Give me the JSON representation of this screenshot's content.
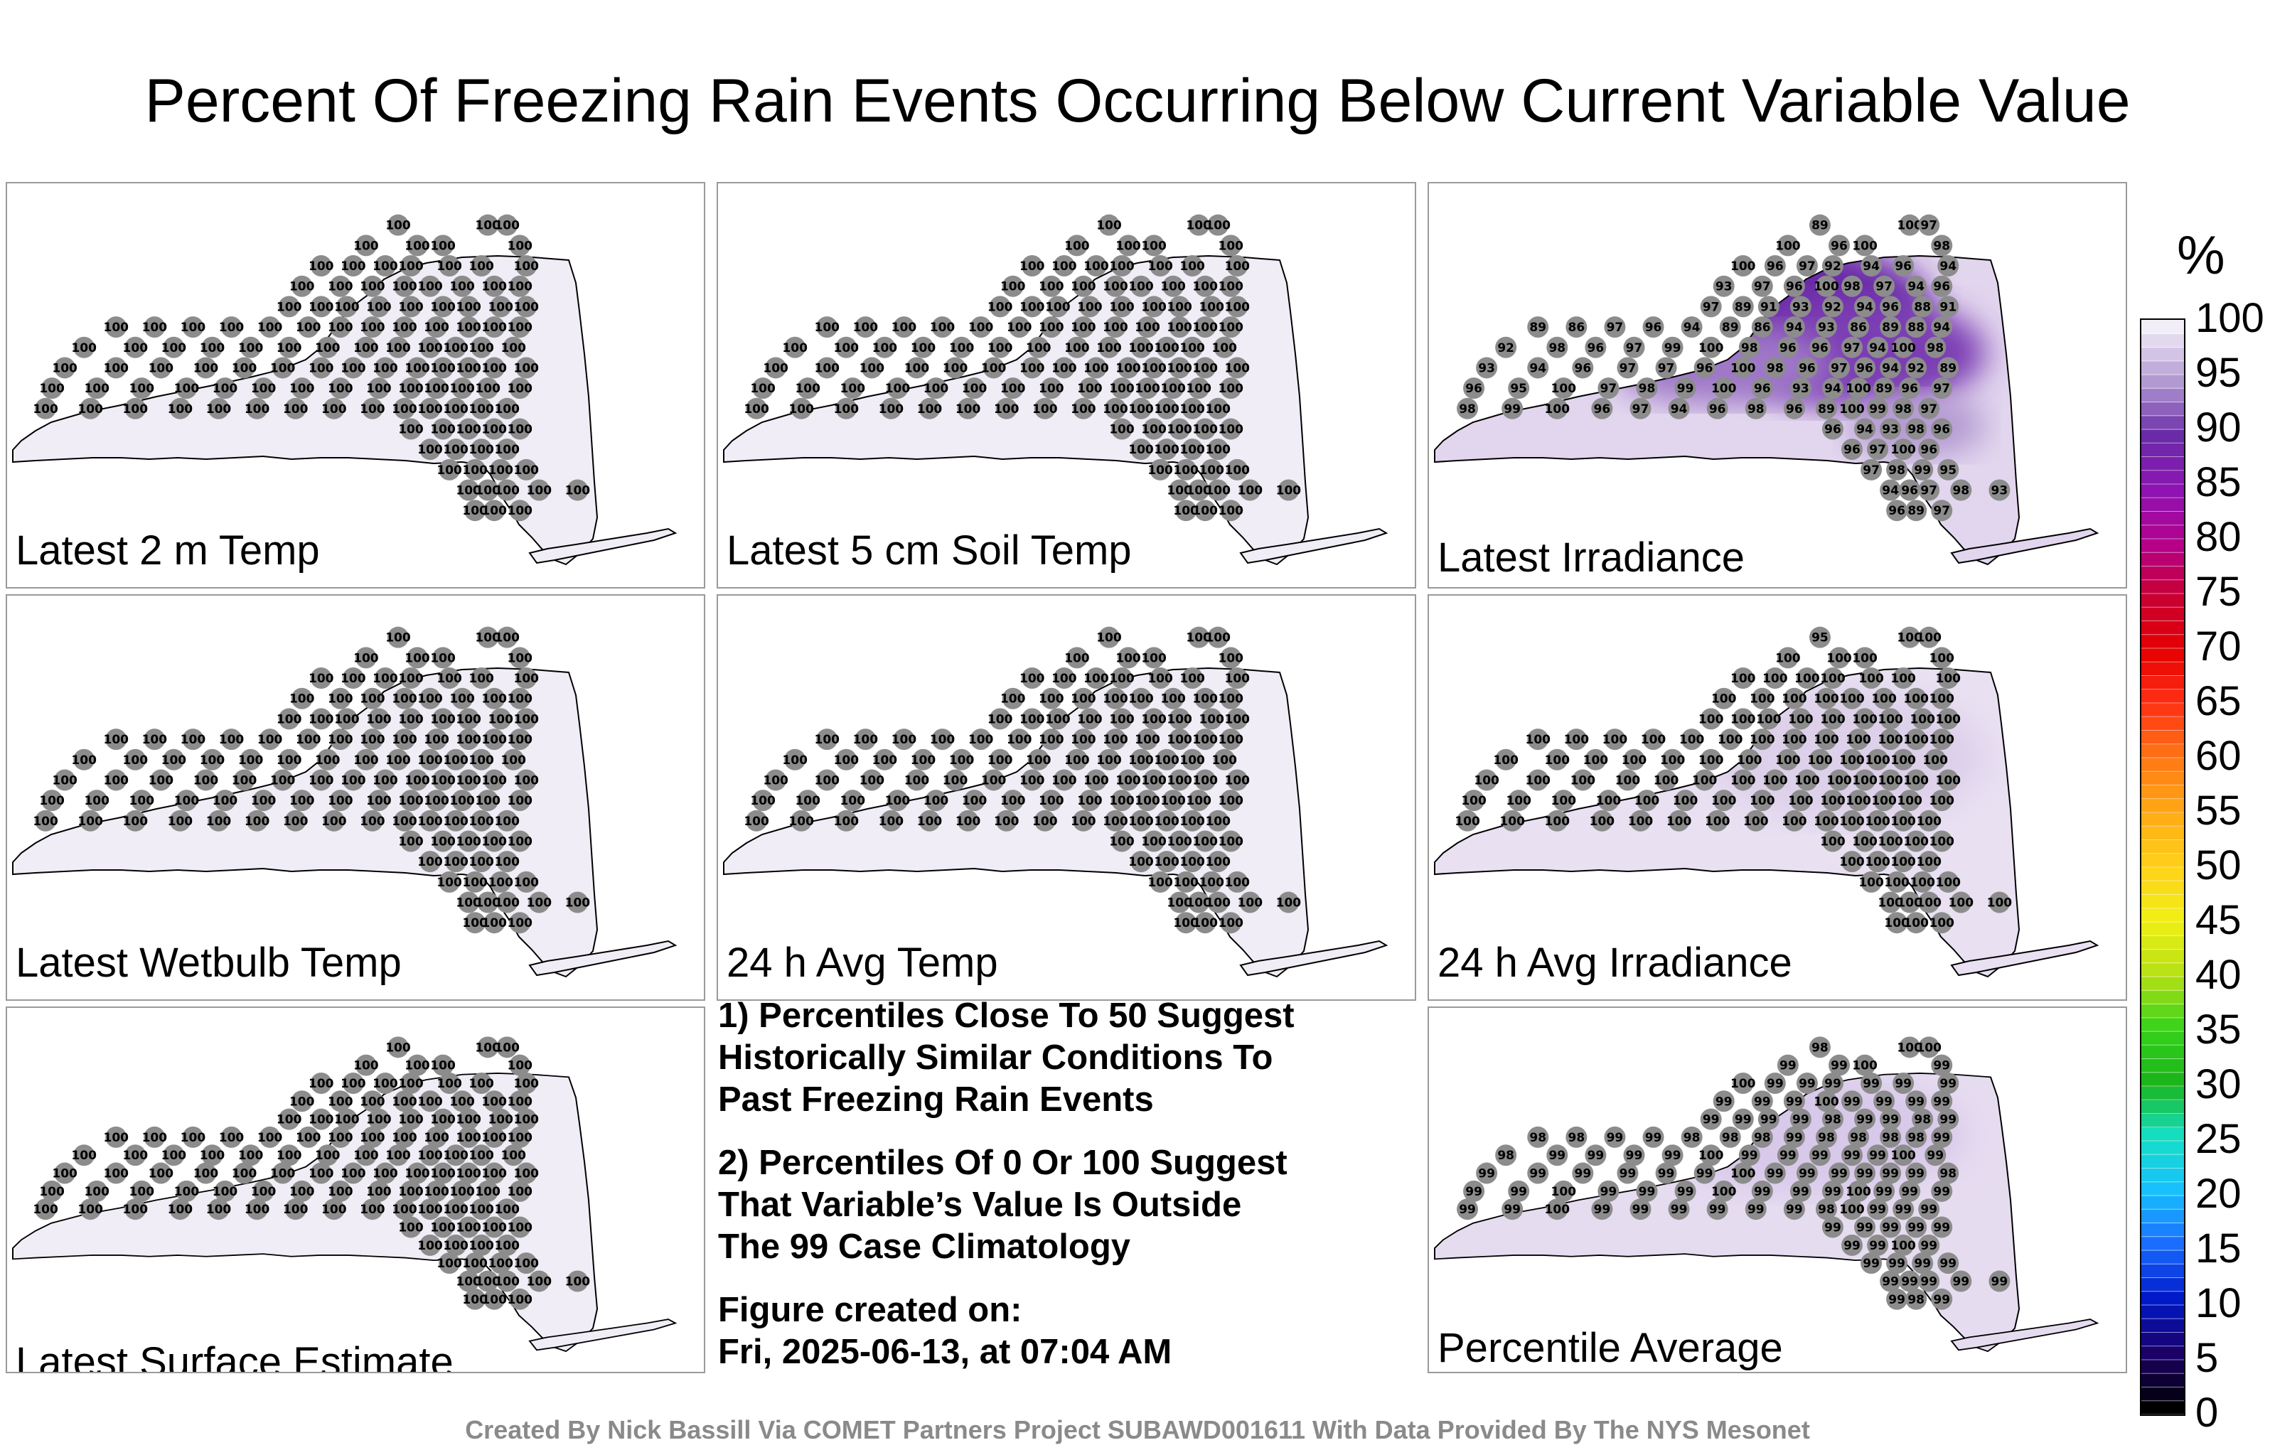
{
  "title": "Percent Of Freezing Rain Events Occurring Below Current Variable Value",
  "panels": [
    {
      "label": "Latest 2 m Temp",
      "values": [
        100,
        100,
        100,
        100,
        100,
        100,
        100,
        100,
        100,
        100,
        100,
        100,
        100,
        100,
        100,
        100,
        100,
        100,
        100,
        100,
        100,
        100,
        100,
        100,
        100,
        100,
        100,
        100,
        100,
        100,
        100,
        100,
        100,
        100,
        100,
        100,
        100,
        100,
        100,
        100,
        100,
        100,
        100,
        100,
        100,
        100,
        100,
        100,
        100,
        100,
        100,
        100,
        100,
        100,
        100,
        100,
        100,
        100,
        100,
        100,
        100,
        100,
        100,
        100,
        100,
        100,
        100,
        100,
        100,
        100,
        100,
        100,
        100,
        100,
        100,
        100,
        100,
        100,
        100,
        100,
        100,
        100,
        100,
        100,
        100,
        100,
        100,
        100,
        100,
        100,
        100,
        100,
        100,
        100,
        100,
        100,
        100,
        100,
        100,
        100,
        100,
        100,
        100,
        100,
        100,
        100,
        100,
        100,
        100,
        100,
        100,
        100,
        100,
        100,
        100,
        100,
        100,
        100,
        100,
        100,
        100,
        100,
        100,
        100,
        100,
        100,
        100,
        100
      ]
    },
    {
      "label": "Latest 5 cm Soil Temp",
      "values": [
        100,
        100,
        100,
        100,
        100,
        100,
        100,
        100,
        100,
        100,
        100,
        100,
        100,
        100,
        100,
        100,
        100,
        100,
        100,
        100,
        100,
        100,
        100,
        100,
        100,
        100,
        100,
        100,
        100,
        100,
        100,
        100,
        100,
        100,
        100,
        100,
        100,
        100,
        100,
        100,
        100,
        100,
        100,
        100,
        100,
        100,
        100,
        100,
        100,
        100,
        100,
        100,
        100,
        100,
        100,
        100,
        100,
        100,
        100,
        100,
        100,
        100,
        100,
        100,
        100,
        100,
        100,
        100,
        100,
        100,
        100,
        100,
        100,
        100,
        100,
        100,
        100,
        100,
        100,
        100,
        100,
        100,
        100,
        100,
        100,
        100,
        100,
        100,
        100,
        100,
        100,
        100,
        100,
        100,
        100,
        100,
        100,
        100,
        100,
        100,
        100,
        100,
        100,
        100,
        100,
        100,
        100,
        100,
        100,
        100,
        100,
        100,
        100,
        100,
        100,
        100,
        100,
        100,
        100,
        100,
        100,
        100,
        100,
        100,
        100,
        100,
        100,
        100
      ]
    },
    {
      "label": "Latest Irradiance",
      "values": [
        89,
        100,
        97,
        100,
        96,
        100,
        98,
        100,
        96,
        97,
        92,
        94,
        96,
        94,
        93,
        97,
        96,
        100,
        98,
        97,
        94,
        96,
        97,
        89,
        91,
        93,
        92,
        94,
        96,
        88,
        91,
        89,
        86,
        97,
        96,
        94,
        89,
        86,
        94,
        93,
        86,
        89,
        88,
        94,
        92,
        98,
        96,
        97,
        99,
        100,
        98,
        96,
        96,
        97,
        94,
        100,
        98,
        93,
        94,
        96,
        97,
        97,
        96,
        100,
        98,
        96,
        97,
        96,
        94,
        92,
        89,
        96,
        95,
        100,
        97,
        98,
        99,
        100,
        96,
        93,
        94,
        100,
        89,
        96,
        97,
        98,
        99,
        100,
        96,
        97,
        94,
        96,
        98,
        96,
        89,
        100,
        99,
        98,
        97,
        96,
        94,
        93,
        98,
        96,
        96,
        97,
        100,
        96,
        97,
        98,
        99,
        95,
        94,
        96,
        97,
        98,
        93,
        96,
        89,
        97,
        96,
        96,
        94,
        98,
        97,
        96,
        100,
        94
      ]
    },
    {
      "label": "Latest Wetbulb Temp",
      "values": [
        100,
        100,
        100,
        100,
        100,
        100,
        100,
        100,
        100,
        100,
        100,
        100,
        100,
        100,
        100,
        100,
        100,
        100,
        100,
        100,
        100,
        100,
        100,
        100,
        100,
        100,
        100,
        100,
        100,
        100,
        100,
        100,
        100,
        100,
        100,
        100,
        100,
        100,
        100,
        100,
        100,
        100,
        100,
        100,
        100,
        100,
        100,
        100,
        100,
        100,
        100,
        100,
        100,
        100,
        100,
        100,
        100,
        100,
        100,
        100,
        100,
        100,
        100,
        100,
        100,
        100,
        100,
        100,
        100,
        100,
        100,
        100,
        100,
        100,
        100,
        100,
        100,
        100,
        100,
        100,
        100,
        100,
        100,
        100,
        100,
        100,
        100,
        100,
        100,
        100,
        100,
        100,
        100,
        100,
        100,
        100,
        100,
        100,
        100,
        100,
        100,
        100,
        100,
        100,
        100,
        100,
        100,
        100,
        100,
        100,
        100,
        100,
        100,
        100,
        100,
        100,
        100,
        100,
        100,
        100,
        100,
        100,
        100,
        100,
        100,
        100,
        100,
        100
      ]
    },
    {
      "label": "24 h Avg Temp",
      "values": [
        100,
        100,
        100,
        100,
        100,
        100,
        100,
        100,
        100,
        100,
        100,
        100,
        100,
        100,
        100,
        100,
        100,
        100,
        100,
        100,
        100,
        100,
        100,
        100,
        100,
        100,
        100,
        100,
        100,
        100,
        100,
        100,
        100,
        100,
        100,
        100,
        100,
        100,
        100,
        100,
        100,
        100,
        100,
        100,
        100,
        100,
        100,
        100,
        100,
        100,
        100,
        100,
        100,
        100,
        100,
        100,
        100,
        100,
        100,
        100,
        100,
        100,
        100,
        100,
        100,
        100,
        100,
        100,
        100,
        100,
        100,
        100,
        100,
        100,
        100,
        100,
        100,
        100,
        100,
        100,
        100,
        100,
        100,
        100,
        100,
        100,
        100,
        100,
        100,
        100,
        100,
        100,
        100,
        100,
        100,
        100,
        100,
        100,
        100,
        100,
        100,
        100,
        100,
        100,
        100,
        100,
        100,
        100,
        100,
        100,
        100,
        100,
        100,
        100,
        100,
        100,
        100,
        100,
        100,
        100,
        100,
        100,
        100,
        100,
        100,
        100,
        100,
        100
      ]
    },
    {
      "label": "24 h Avg Irradiance",
      "values": [
        95,
        100,
        100,
        100,
        100,
        100,
        100,
        100,
        100,
        100,
        100,
        100,
        100,
        100,
        100,
        100,
        100,
        100,
        100,
        100,
        100,
        100,
        100,
        100,
        100,
        100,
        100,
        100,
        100,
        100,
        100,
        100,
        100,
        100,
        100,
        100,
        100,
        100,
        100,
        100,
        100,
        100,
        100,
        100,
        100,
        100,
        100,
        100,
        100,
        100,
        100,
        100,
        100,
        100,
        100,
        100,
        100,
        100,
        100,
        100,
        100,
        100,
        100,
        100,
        100,
        100,
        100,
        100,
        100,
        100,
        100,
        100,
        100,
        100,
        100,
        100,
        100,
        100,
        100,
        100,
        100,
        100,
        100,
        100,
        100,
        100,
        100,
        100,
        100,
        100,
        100,
        100,
        100,
        100,
        100,
        100,
        100,
        100,
        100,
        100,
        100,
        100,
        100,
        100,
        100,
        100,
        100,
        100,
        100,
        100,
        100,
        100,
        100,
        100,
        100,
        100,
        100,
        100,
        100,
        100,
        100,
        100,
        100,
        100,
        100,
        100,
        100,
        100
      ]
    },
    {
      "label": "Latest Surface Estimate",
      "values": [
        100,
        100,
        100,
        100,
        100,
        100,
        100,
        100,
        100,
        100,
        100,
        100,
        100,
        100,
        100,
        100,
        100,
        100,
        100,
        100,
        100,
        100,
        100,
        100,
        100,
        100,
        100,
        100,
        100,
        100,
        100,
        100,
        100,
        100,
        100,
        100,
        100,
        100,
        100,
        100,
        100,
        100,
        100,
        100,
        100,
        100,
        100,
        100,
        100,
        100,
        100,
        100,
        100,
        100,
        100,
        100,
        100,
        100,
        100,
        100,
        100,
        100,
        100,
        100,
        100,
        100,
        100,
        100,
        100,
        100,
        100,
        100,
        100,
        100,
        100,
        100,
        100,
        100,
        100,
        100,
        100,
        100,
        100,
        100,
        100,
        100,
        100,
        100,
        100,
        100,
        100,
        100,
        100,
        100,
        100,
        100,
        100,
        100,
        100,
        100,
        100,
        100,
        100,
        100,
        100,
        100,
        100,
        100,
        100,
        100,
        100,
        100,
        100,
        100,
        100,
        100,
        100,
        100,
        100,
        100,
        100,
        100,
        100,
        100,
        100,
        100,
        100,
        100
      ]
    },
    {
      "label": "Percentile Average",
      "values": [
        98,
        100,
        100,
        99,
        99,
        100,
        99,
        100,
        99,
        99,
        99,
        99,
        99,
        99,
        99,
        99,
        99,
        100,
        99,
        99,
        99,
        99,
        99,
        99,
        99,
        99,
        98,
        99,
        99,
        98,
        99,
        98,
        98,
        99,
        99,
        98,
        98,
        98,
        99,
        98,
        98,
        98,
        98,
        99,
        98,
        99,
        99,
        99,
        99,
        100,
        99,
        99,
        99,
        99,
        99,
        100,
        99,
        99,
        99,
        99,
        99,
        99,
        99,
        100,
        99,
        99,
        99,
        99,
        99,
        99,
        98,
        99,
        99,
        100,
        99,
        99,
        99,
        100,
        99,
        99,
        99,
        100,
        99,
        99,
        99,
        99,
        99,
        100,
        99,
        99,
        99,
        99,
        99,
        99,
        98,
        100,
        99,
        99,
        99,
        99,
        99,
        99,
        99,
        99,
        99,
        99,
        100,
        99,
        99,
        99,
        99,
        99,
        99,
        99,
        99,
        99,
        99,
        99,
        98,
        99,
        99,
        99,
        99,
        99,
        99,
        99,
        100,
        99
      ]
    }
  ],
  "notes": [
    [
      "1) Percentiles Close To 50 Suggest",
      "Historically Similar Conditions To",
      "Past Freezing Rain Events"
    ],
    [
      "2) Percentiles Of 0 Or 100 Suggest",
      "That Variable’s Value Is Outside",
      "The 99 Case Climatology"
    ],
    [
      "Figure created on:",
      "Fri, 2025-06-13, at 07:04 AM"
    ]
  ],
  "colorbar": {
    "unit": "%",
    "ticks": [
      "100",
      "95",
      "90",
      "85",
      "80",
      "75",
      "70",
      "65",
      "60",
      "55",
      "50",
      "45",
      "40",
      "35",
      "30",
      "25",
      "20",
      "15",
      "10",
      "5",
      "0"
    ],
    "colors": [
      "#000000",
      "#1a0066",
      "#0018c8",
      "#1a6aff",
      "#18bfff",
      "#16e0c8",
      "#1ab41a",
      "#34d21a",
      "#b4e014",
      "#f0f014",
      "#ffd21a",
      "#ffaa14",
      "#ff7814",
      "#ff3214",
      "#e60000",
      "#c80032",
      "#b4008c",
      "#8c14b4",
      "#6a2ca8",
      "#b49ad2",
      "#f2eef8"
    ]
  },
  "footer": "Created By Nick Bassill Via COMET Partners Project SUBAWD001611 With Data Provided By The NYS Mesonet"
}
